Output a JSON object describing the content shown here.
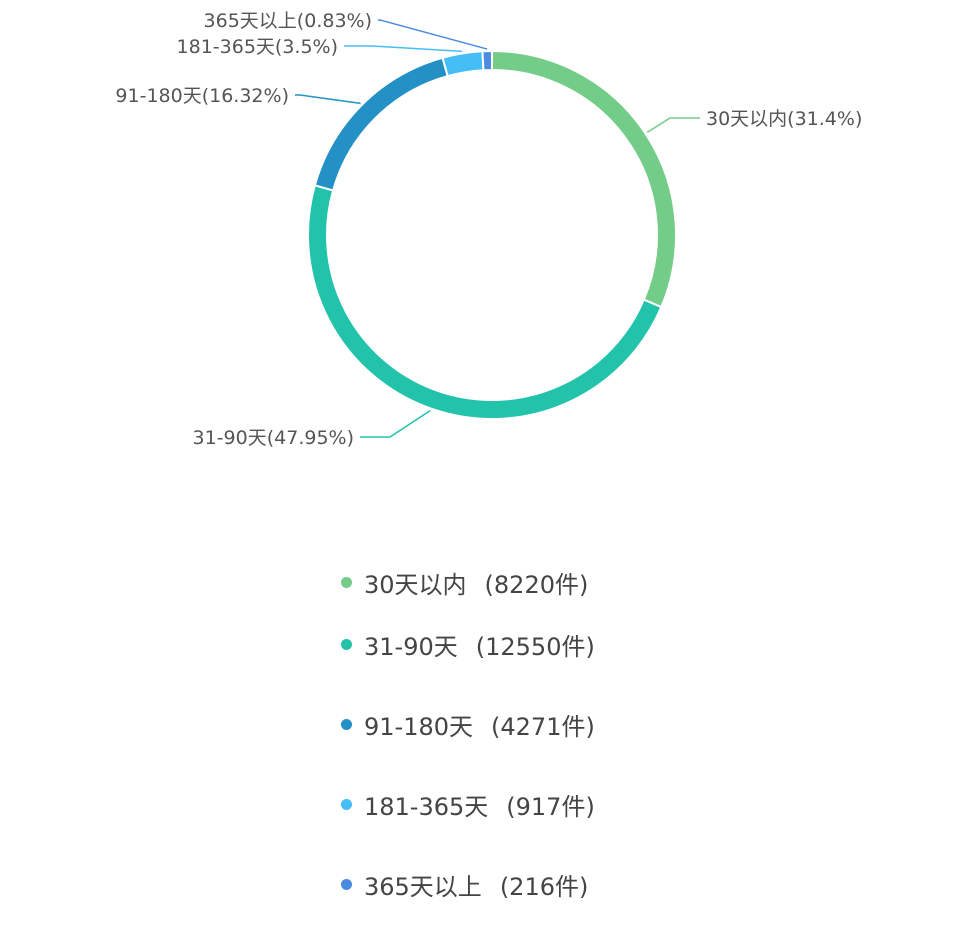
{
  "chart_data": {
    "type": "pie",
    "donut": true,
    "unit": "件",
    "categories": [
      "30天以内",
      "31-90天",
      "91-180天",
      "181-365天",
      "365天以上"
    ],
    "values": [
      8220,
      12550,
      4271,
      917,
      216
    ],
    "percent_labels": [
      "31.4%",
      "47.95%",
      "16.32%",
      "3.5%",
      "0.83%"
    ],
    "callout_labels": [
      "30天以内(31.4%)",
      "31-90天(47.95%)",
      "91-180天(16.32%)",
      "181-365天(3.5%)",
      "365天以上(0.83%)"
    ],
    "legend_counts": [
      "(8220件)",
      "(12550件)",
      "(4271件)",
      "(917件)",
      "(216件)"
    ],
    "colors": [
      "#73cc88",
      "#22c3aa",
      "#2390c6",
      "#45bef5",
      "#4b8be0"
    ],
    "legend_position": "bottom"
  }
}
